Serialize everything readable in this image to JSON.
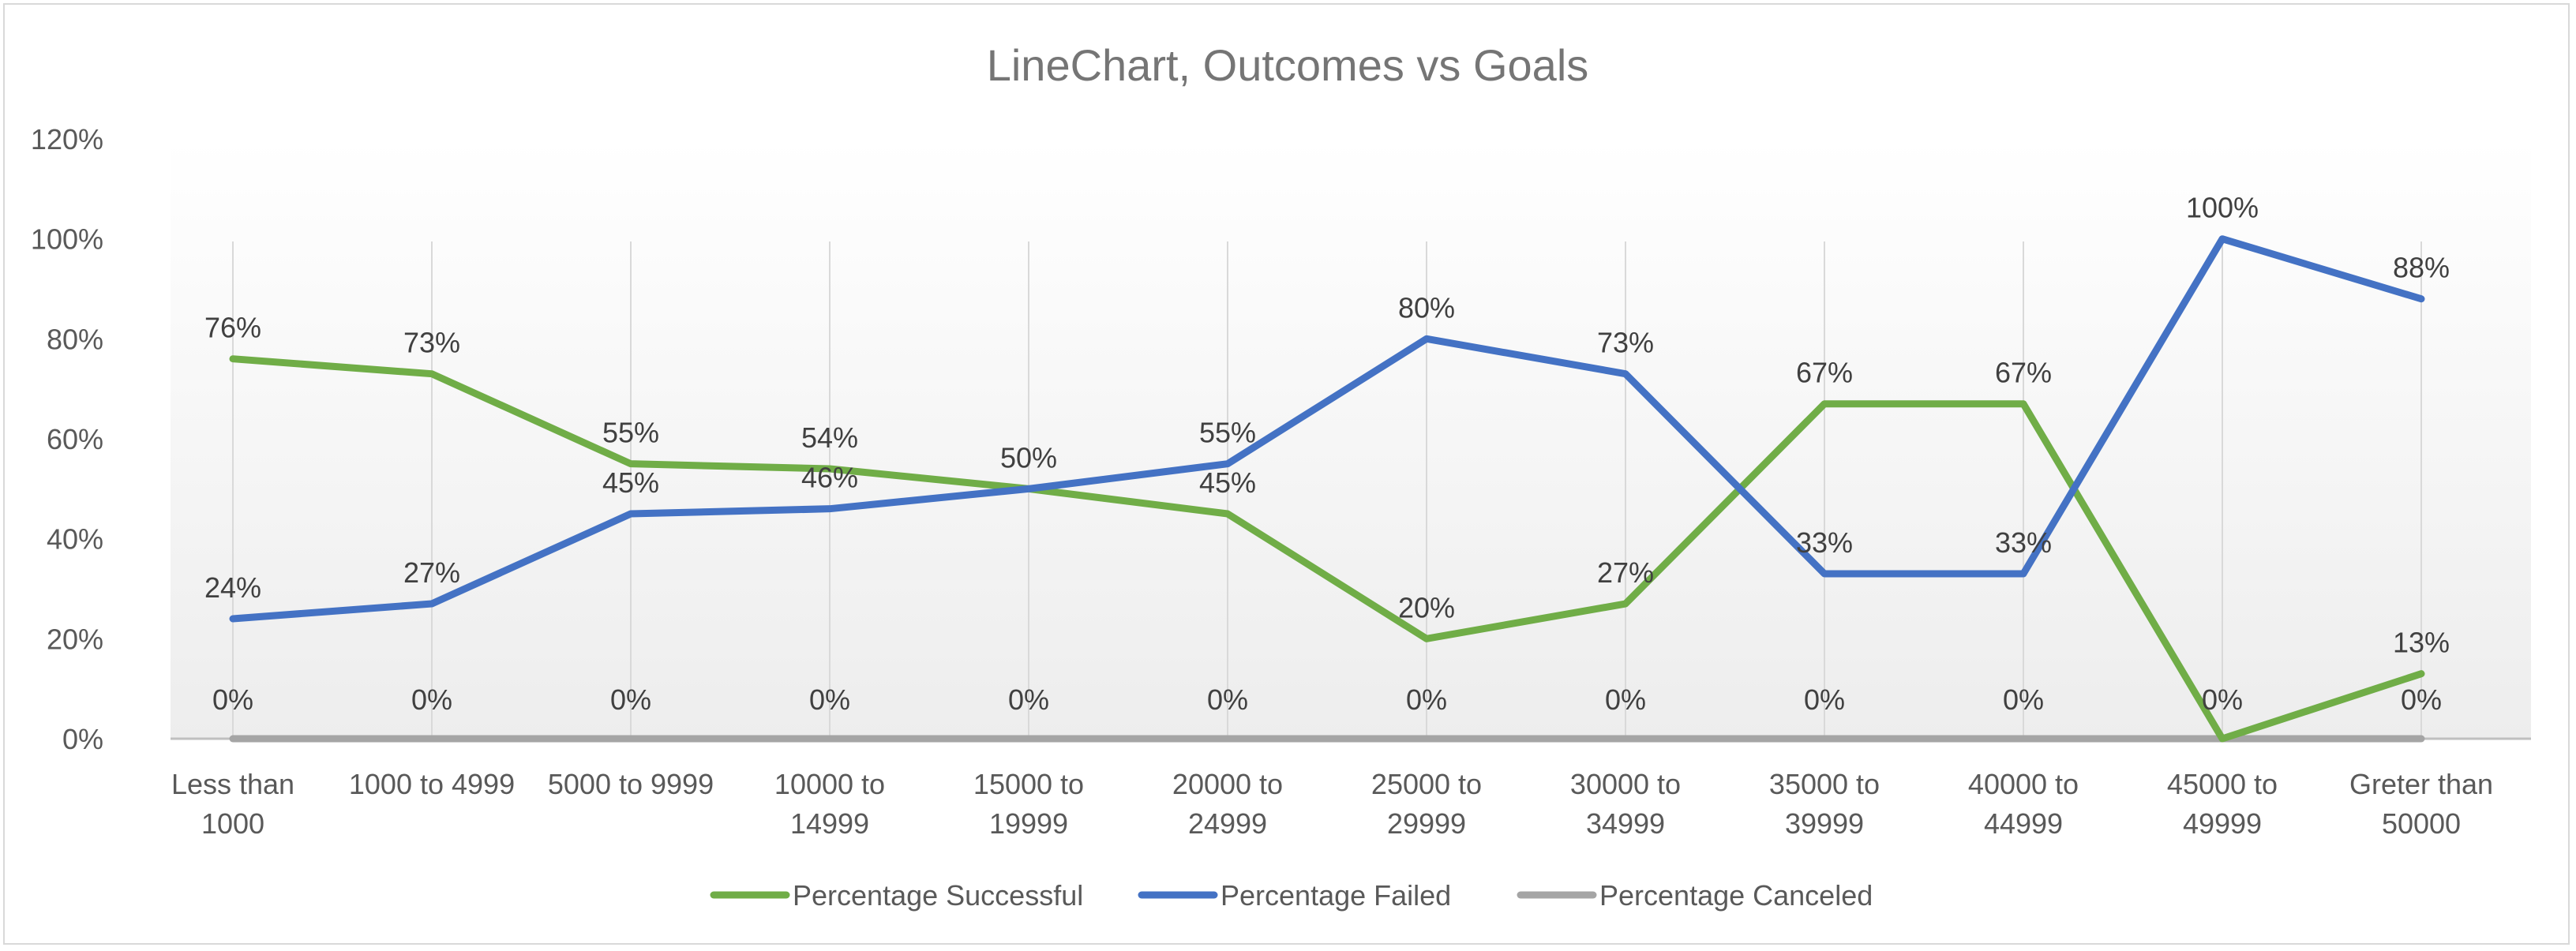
{
  "chart_data": {
    "type": "line",
    "title": "LineChart, Outcomes vs Goals",
    "xlabel": "",
    "ylabel": "",
    "ylim": [
      0,
      120
    ],
    "yticks": [
      "0%",
      "20%",
      "40%",
      "60%",
      "80%",
      "100%",
      "120%"
    ],
    "categories": [
      [
        "Less than",
        "1000"
      ],
      [
        "1000 to 4999"
      ],
      [
        "5000 to 9999"
      ],
      [
        "10000 to",
        "14999"
      ],
      [
        "15000 to",
        "19999"
      ],
      [
        "20000 to",
        "24999"
      ],
      [
        "25000 to",
        "29999"
      ],
      [
        "30000 to",
        "34999"
      ],
      [
        "35000 to",
        "39999"
      ],
      [
        "40000 to",
        "44999"
      ],
      [
        "45000 to",
        "49999"
      ],
      [
        "Greter than",
        "50000"
      ]
    ],
    "series": [
      {
        "name": "Percentage Successful",
        "color": "#70ad47",
        "values": [
          76,
          73,
          55,
          54,
          50,
          45,
          20,
          27,
          67,
          67,
          0,
          13
        ],
        "labels": [
          "76%",
          "73%",
          "55%",
          "54%",
          "50%",
          "45%",
          "20%",
          "27%",
          "67%",
          "67%",
          "",
          "13%"
        ]
      },
      {
        "name": "Percentage Failed",
        "color": "#4472c4",
        "values": [
          24,
          27,
          45,
          46,
          50,
          55,
          80,
          73,
          33,
          33,
          100,
          88
        ],
        "labels": [
          "24%",
          "27%",
          "45%",
          "46%",
          "",
          "55%",
          "80%",
          "73%",
          "33%",
          "33%",
          "100%",
          "88%"
        ]
      },
      {
        "name": "Percentage Canceled",
        "color": "#a5a5a5",
        "values": [
          0,
          0,
          0,
          0,
          0,
          0,
          0,
          0,
          0,
          0,
          0,
          0
        ],
        "labels": [
          "0%",
          "0%",
          "0%",
          "0%",
          "0%",
          "0%",
          "0%",
          "0%",
          "0%",
          "0%",
          "0%",
          "0%"
        ]
      }
    ],
    "grid": "vertical",
    "legend": "bottom"
  }
}
